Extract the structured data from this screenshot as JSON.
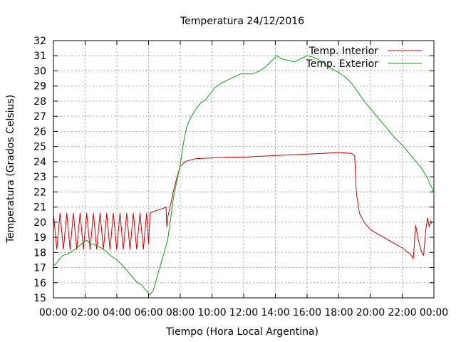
{
  "chart_data": {
    "type": "line",
    "title": "Temperatura 24/12/2016",
    "xlabel": "Tiempo (Hora Local Argentina)",
    "ylabel": "Temperatura (Grados Celsius)",
    "x_ticks": [
      "00:00",
      "02:00",
      "04:00",
      "06:00",
      "08:00",
      "10:00",
      "12:00",
      "14:00",
      "16:00",
      "18:00",
      "20:00",
      "22:00",
      "00:00"
    ],
    "y_ticks": [
      15,
      16,
      17,
      18,
      19,
      20,
      21,
      22,
      23,
      24,
      25,
      26,
      27,
      28,
      29,
      30,
      31,
      32
    ],
    "xlim_hours": [
      0,
      24
    ],
    "ylim": [
      15,
      32
    ],
    "grid": true,
    "legend_position": "top-right",
    "series": [
      {
        "name": "Temp. Interior",
        "color": "#cc0000",
        "oscillation": {
          "start_hour": 0.0,
          "end_hour": 6.0,
          "period_hours": 0.42,
          "low": 18.2,
          "high": 20.6
        },
        "points": [
          [
            6.0,
            18.6
          ],
          [
            6.1,
            20.6
          ],
          [
            6.3,
            20.7
          ],
          [
            6.6,
            20.8
          ],
          [
            6.9,
            20.9
          ],
          [
            7.1,
            21.0
          ],
          [
            7.15,
            19.7
          ],
          [
            7.2,
            20.3
          ],
          [
            7.4,
            21.2
          ],
          [
            7.6,
            22.2
          ],
          [
            7.8,
            23.0
          ],
          [
            8.0,
            23.7
          ],
          [
            8.3,
            24.0
          ],
          [
            8.6,
            24.1
          ],
          [
            9.0,
            24.2
          ],
          [
            10.0,
            24.25
          ],
          [
            11.0,
            24.3
          ],
          [
            12.0,
            24.3
          ],
          [
            13.0,
            24.35
          ],
          [
            14.0,
            24.4
          ],
          [
            15.0,
            24.45
          ],
          [
            16.0,
            24.5
          ],
          [
            17.0,
            24.55
          ],
          [
            18.0,
            24.6
          ],
          [
            18.8,
            24.55
          ],
          [
            19.0,
            24.4
          ],
          [
            19.1,
            22.0
          ],
          [
            19.3,
            20.6
          ],
          [
            19.6,
            20.0
          ],
          [
            20.0,
            19.5
          ],
          [
            20.5,
            19.2
          ],
          [
            21.0,
            18.9
          ],
          [
            21.5,
            18.6
          ],
          [
            22.0,
            18.3
          ],
          [
            22.5,
            17.9
          ],
          [
            22.7,
            17.6
          ],
          [
            22.85,
            19.8
          ],
          [
            23.0,
            18.9
          ],
          [
            23.2,
            18.1
          ],
          [
            23.35,
            17.8
          ],
          [
            23.5,
            19.6
          ],
          [
            23.6,
            20.3
          ],
          [
            23.7,
            19.7
          ],
          [
            23.8,
            20.1
          ],
          [
            23.85,
            19.9
          ]
        ]
      },
      {
        "name": "Temp. Exterior",
        "color": "#00aa00",
        "points": [
          [
            0.0,
            17.1
          ],
          [
            0.2,
            17.3
          ],
          [
            0.4,
            17.6
          ],
          [
            0.6,
            17.8
          ],
          [
            0.9,
            17.9
          ],
          [
            1.2,
            18.1
          ],
          [
            1.5,
            18.3
          ],
          [
            1.8,
            18.6
          ],
          [
            2.1,
            18.8
          ],
          [
            2.3,
            18.6
          ],
          [
            2.6,
            18.5
          ],
          [
            3.0,
            18.3
          ],
          [
            3.3,
            18.1
          ],
          [
            3.6,
            17.8
          ],
          [
            4.0,
            17.5
          ],
          [
            4.4,
            17.1
          ],
          [
            4.8,
            16.6
          ],
          [
            5.2,
            16.1
          ],
          [
            5.6,
            15.8
          ],
          [
            5.9,
            15.4
          ],
          [
            6.1,
            15.2
          ],
          [
            6.3,
            15.5
          ],
          [
            6.6,
            16.6
          ],
          [
            6.9,
            17.7
          ],
          [
            7.2,
            18.8
          ],
          [
            7.4,
            20.3
          ],
          [
            7.6,
            21.8
          ],
          [
            7.8,
            22.8
          ],
          [
            8.0,
            23.8
          ],
          [
            8.2,
            25.2
          ],
          [
            8.4,
            26.3
          ],
          [
            8.7,
            27.0
          ],
          [
            9.0,
            27.5
          ],
          [
            9.3,
            27.9
          ],
          [
            9.6,
            28.1
          ],
          [
            9.9,
            28.5
          ],
          [
            10.2,
            28.9
          ],
          [
            10.6,
            29.2
          ],
          [
            11.0,
            29.4
          ],
          [
            11.4,
            29.6
          ],
          [
            11.8,
            29.8
          ],
          [
            12.2,
            29.8
          ],
          [
            12.6,
            29.8
          ],
          [
            13.0,
            30.0
          ],
          [
            13.4,
            30.3
          ],
          [
            13.8,
            30.7
          ],
          [
            14.1,
            31.0
          ],
          [
            14.4,
            30.8
          ],
          [
            14.8,
            30.7
          ],
          [
            15.2,
            30.6
          ],
          [
            15.6,
            30.8
          ],
          [
            16.0,
            31.0
          ],
          [
            16.4,
            30.9
          ],
          [
            16.8,
            30.7
          ],
          [
            17.2,
            30.4
          ],
          [
            17.6,
            30.1
          ],
          [
            18.0,
            29.9
          ],
          [
            18.4,
            29.6
          ],
          [
            18.8,
            29.2
          ],
          [
            19.2,
            28.6
          ],
          [
            19.6,
            28.0
          ],
          [
            20.0,
            27.5
          ],
          [
            20.4,
            27.0
          ],
          [
            20.8,
            26.5
          ],
          [
            21.2,
            26.0
          ],
          [
            21.6,
            25.5
          ],
          [
            22.0,
            25.1
          ],
          [
            22.4,
            24.6
          ],
          [
            22.8,
            24.1
          ],
          [
            23.2,
            23.6
          ],
          [
            23.6,
            22.9
          ],
          [
            23.9,
            22.2
          ],
          [
            24.0,
            21.9
          ]
        ]
      }
    ]
  }
}
